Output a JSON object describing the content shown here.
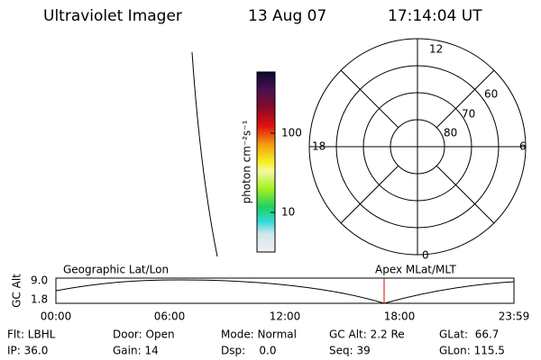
{
  "header": {
    "instrument": "Ultraviolet Imager",
    "date": "13 Aug 07",
    "time": "17:14:04 UT"
  },
  "colorbar": {
    "label": "photon cm⁻²s⁻¹",
    "ticks": [
      "100",
      "10"
    ]
  },
  "polar": {
    "mlt_labels": [
      "12",
      "18",
      "6",
      "0"
    ],
    "lat_labels": [
      "60",
      "70",
      "80"
    ]
  },
  "altitude_panel": {
    "ylabel": "GC Alt",
    "yticks": [
      "9.0",
      "1.8"
    ],
    "left_label": "Geographic Lat/Lon",
    "right_label": "Apex MLat/MLT",
    "xticks": [
      "00:00",
      "06:00",
      "12:00",
      "18:00",
      "23:59"
    ]
  },
  "info": {
    "rows": [
      [
        "Flt: LBHL",
        "Door: Open",
        "Mode: Normal",
        "GC Alt: 2.2 Re",
        "GLat:  66.7"
      ],
      [
        "IP: 36.0",
        "Gain: 14",
        "Dsp:    0.0",
        "Seq: 39",
        "GLon: 115.5"
      ]
    ]
  }
}
